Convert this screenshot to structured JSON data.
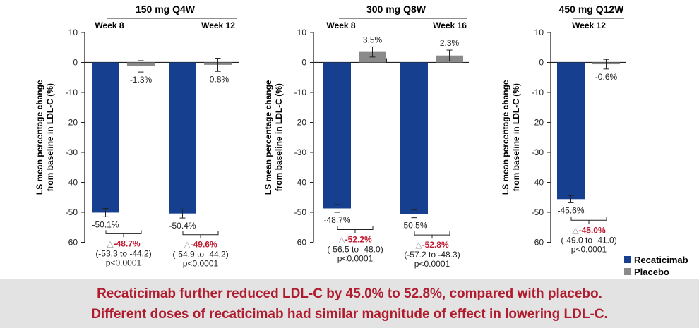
{
  "chart_data": [
    {
      "type": "bar",
      "title": "150 mg Q4W",
      "ylabel": "LS mean percentage change from baseline in LDL-C (%)",
      "ylim": [
        -60,
        10
      ],
      "yticks": [
        10,
        0,
        -10,
        -20,
        -30,
        -40,
        -50,
        -60
      ],
      "categories": [
        "Week 8",
        "Week 12"
      ],
      "series": [
        {
          "name": "Recaticimab",
          "values": [
            -50.1,
            -50.4
          ],
          "labels": [
            "-50.1%",
            "-50.4%"
          ],
          "error": [
            1.4,
            1.5
          ]
        },
        {
          "name": "Placebo",
          "values": [
            -1.3,
            -0.8
          ],
          "labels": [
            "-1.3%",
            "-0.8%"
          ],
          "error": [
            1.9,
            2.2
          ]
        }
      ],
      "differences": [
        {
          "delta": "-48.7%",
          "ci": "(-53.3 to -44.2)",
          "p": "p<0.0001"
        },
        {
          "delta": "-49.6%",
          "ci": "(-54.9 to -44.2)",
          "p": "p<0.0001"
        }
      ]
    },
    {
      "type": "bar",
      "title": "300 mg Q8W",
      "ylabel": "LS mean percentage change from baseline in LDL-C (%)",
      "ylim": [
        -60,
        10
      ],
      "yticks": [
        10,
        0,
        -10,
        -20,
        -30,
        -40,
        -50,
        -60
      ],
      "categories": [
        "Week 8",
        "Week 16"
      ],
      "series": [
        {
          "name": "Recaticimab",
          "values": [
            -48.7,
            -50.5
          ],
          "labels": [
            "-48.7%",
            "-50.5%"
          ],
          "error": [
            1.3,
            1.3
          ]
        },
        {
          "name": "Placebo",
          "values": [
            3.5,
            2.3
          ],
          "labels": [
            "3.5%",
            "2.3%"
          ],
          "error": [
            1.7,
            1.8
          ]
        }
      ],
      "differences": [
        {
          "delta": "-52.2%",
          "ci": "(-56.5 to -48.0)",
          "p": "p<0.0001"
        },
        {
          "delta": "-52.8%",
          "ci": "(-57.2 to -48.3)",
          "p": "p<0.0001"
        }
      ]
    },
    {
      "type": "bar",
      "title": "450 mg Q12W",
      "ylabel": "LS mean percentage change from baseline in LDL-C (%)",
      "ylim": [
        -60,
        10
      ],
      "yticks": [
        10,
        0,
        -10,
        -20,
        -30,
        -40,
        -50,
        -60
      ],
      "categories": [
        "Week 12"
      ],
      "series": [
        {
          "name": "Recaticimab",
          "values": [
            -45.6
          ],
          "labels": [
            "-45.6%"
          ],
          "error": [
            1.2
          ]
        },
        {
          "name": "Placebo",
          "values": [
            -0.6
          ],
          "labels": [
            "-0.6%"
          ],
          "error": [
            1.6
          ]
        }
      ],
      "differences": [
        {
          "delta": "-45.0%",
          "ci": "(-49.0 to -41.0)",
          "p": "p<0.0001"
        }
      ]
    }
  ],
  "legend": {
    "position": "bottom-right",
    "items": [
      {
        "name": "Recaticimab",
        "color": "#16408f"
      },
      {
        "name": "Placebo",
        "color": "#8a8a8a"
      }
    ]
  },
  "delta_symbol": "△",
  "colors": {
    "recat": "#16408f",
    "placebo": "#8a8a8a",
    "delta": "#c0182e"
  },
  "banner": {
    "line1": "Recaticimab further reduced LDL-C by 45.0% to 52.8%, compared with placebo.",
    "line2": "Different doses of recaticimab had similar magnitude of effect in lowering LDL-C."
  }
}
